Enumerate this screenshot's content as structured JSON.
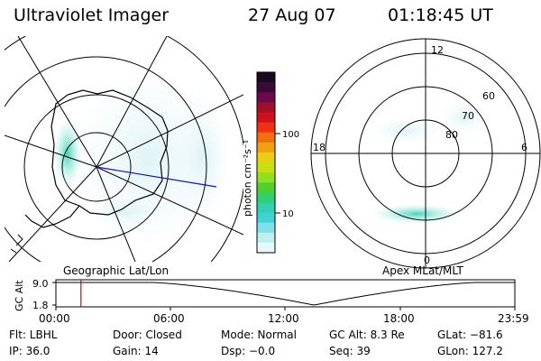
{
  "header": {
    "title": "Ultraviolet Imager",
    "date": "27 Aug 07",
    "time": "01:18:45 UT"
  },
  "left_panel": {
    "caption": "Geographic Lat/Lon"
  },
  "right_panel": {
    "caption": "Apex MLat/MLT",
    "mlt_labels": {
      "top": "12",
      "left": "18",
      "right": "6",
      "bottom": "0"
    },
    "mlat_labels": [
      "60",
      "70",
      "80"
    ]
  },
  "colorbar": {
    "unit_label": "photon cm⁻²s⁻¹",
    "tick_labels": [
      "100",
      "10"
    ],
    "colors": [
      "#1a0a1e",
      "#3a0a3a",
      "#6a0a4a",
      "#a0102a",
      "#d0101a",
      "#f03010",
      "#f07010",
      "#f0a010",
      "#e8d010",
      "#c8e010",
      "#90e020",
      "#50d030",
      "#30d070",
      "#30d0b0",
      "#40d0d8",
      "#80e0e8",
      "#c0eef0",
      "#e8f8f8"
    ]
  },
  "alt_plot": {
    "ylabel": "GC Alt",
    "y_ticks": [
      "9.0",
      "1.8"
    ],
    "x_ticks": [
      "00:00",
      "06:00",
      "12:00",
      "18:00",
      "23:59"
    ],
    "marker_color": "#e00000",
    "marker_time_hours": 1.31,
    "curve_color": "#000000"
  },
  "status": {
    "row1": {
      "filter": "Flt: LBHL",
      "door": "Door: Closed",
      "mode": "Mode: Normal",
      "gc_alt": "GC Alt: 8.3 Re",
      "glat": "GLat: −81.6"
    },
    "row2": {
      "ip": "IP: 36.0",
      "gain": "Gain: 14",
      "dsp": "Dsp:   −0.0",
      "seq": "Seq: 39",
      "glon": "GLon: 127.2"
    }
  }
}
